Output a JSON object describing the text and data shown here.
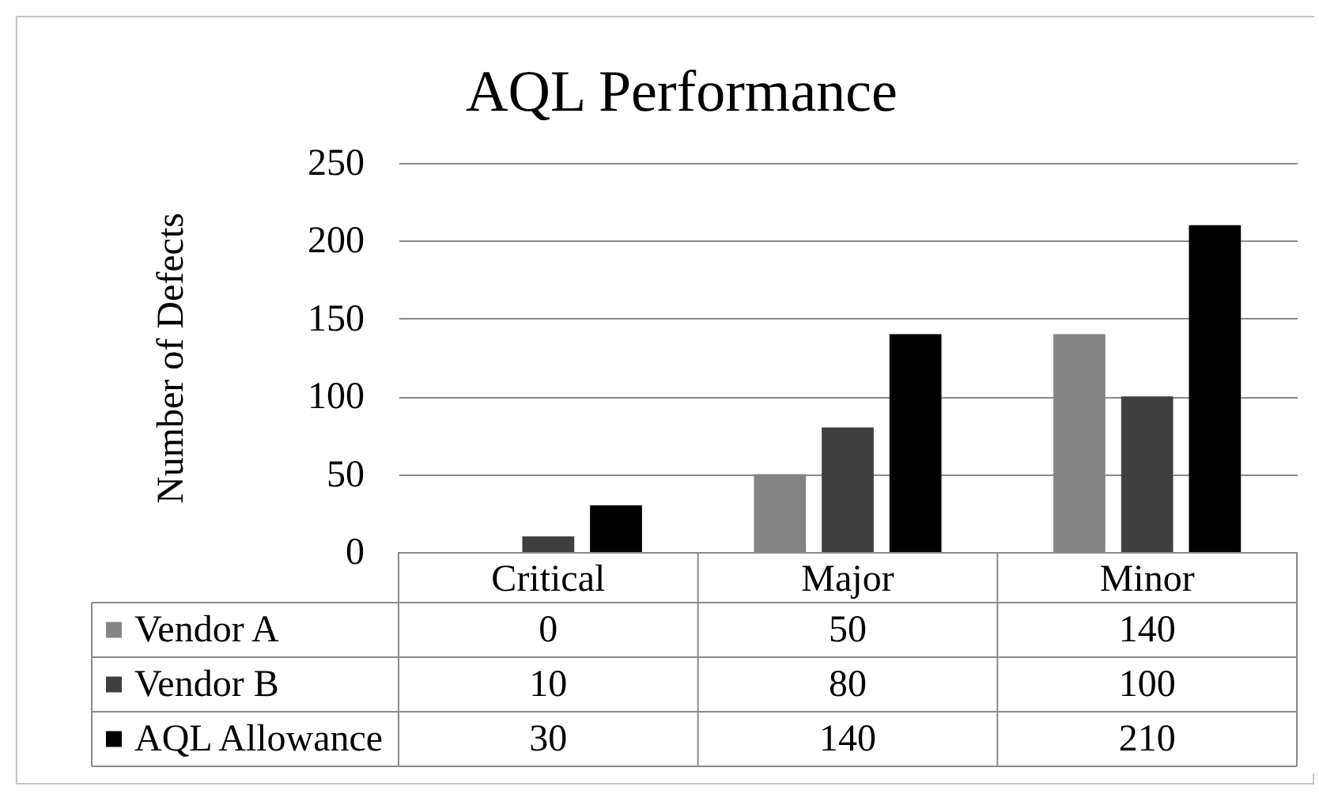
{
  "chart_data": {
    "type": "bar",
    "title": "AQL Performance",
    "ylabel": "Number of Defects",
    "categories": [
      "Critical",
      "Major",
      "Minor"
    ],
    "series": [
      {
        "name": "Vendor A",
        "color": "#858585",
        "values": [
          0,
          50,
          140
        ]
      },
      {
        "name": "Vendor B",
        "color": "#3f3f3f",
        "values": [
          10,
          80,
          100
        ]
      },
      {
        "name": "AQL Allowance",
        "color": "#000000",
        "values": [
          30,
          140,
          210
        ]
      }
    ],
    "ylim": [
      0,
      250
    ],
    "yticks": [
      0,
      50,
      100,
      150,
      200,
      250
    ],
    "grid": "y",
    "legend": "bottom left",
    "data_labels": true
  }
}
